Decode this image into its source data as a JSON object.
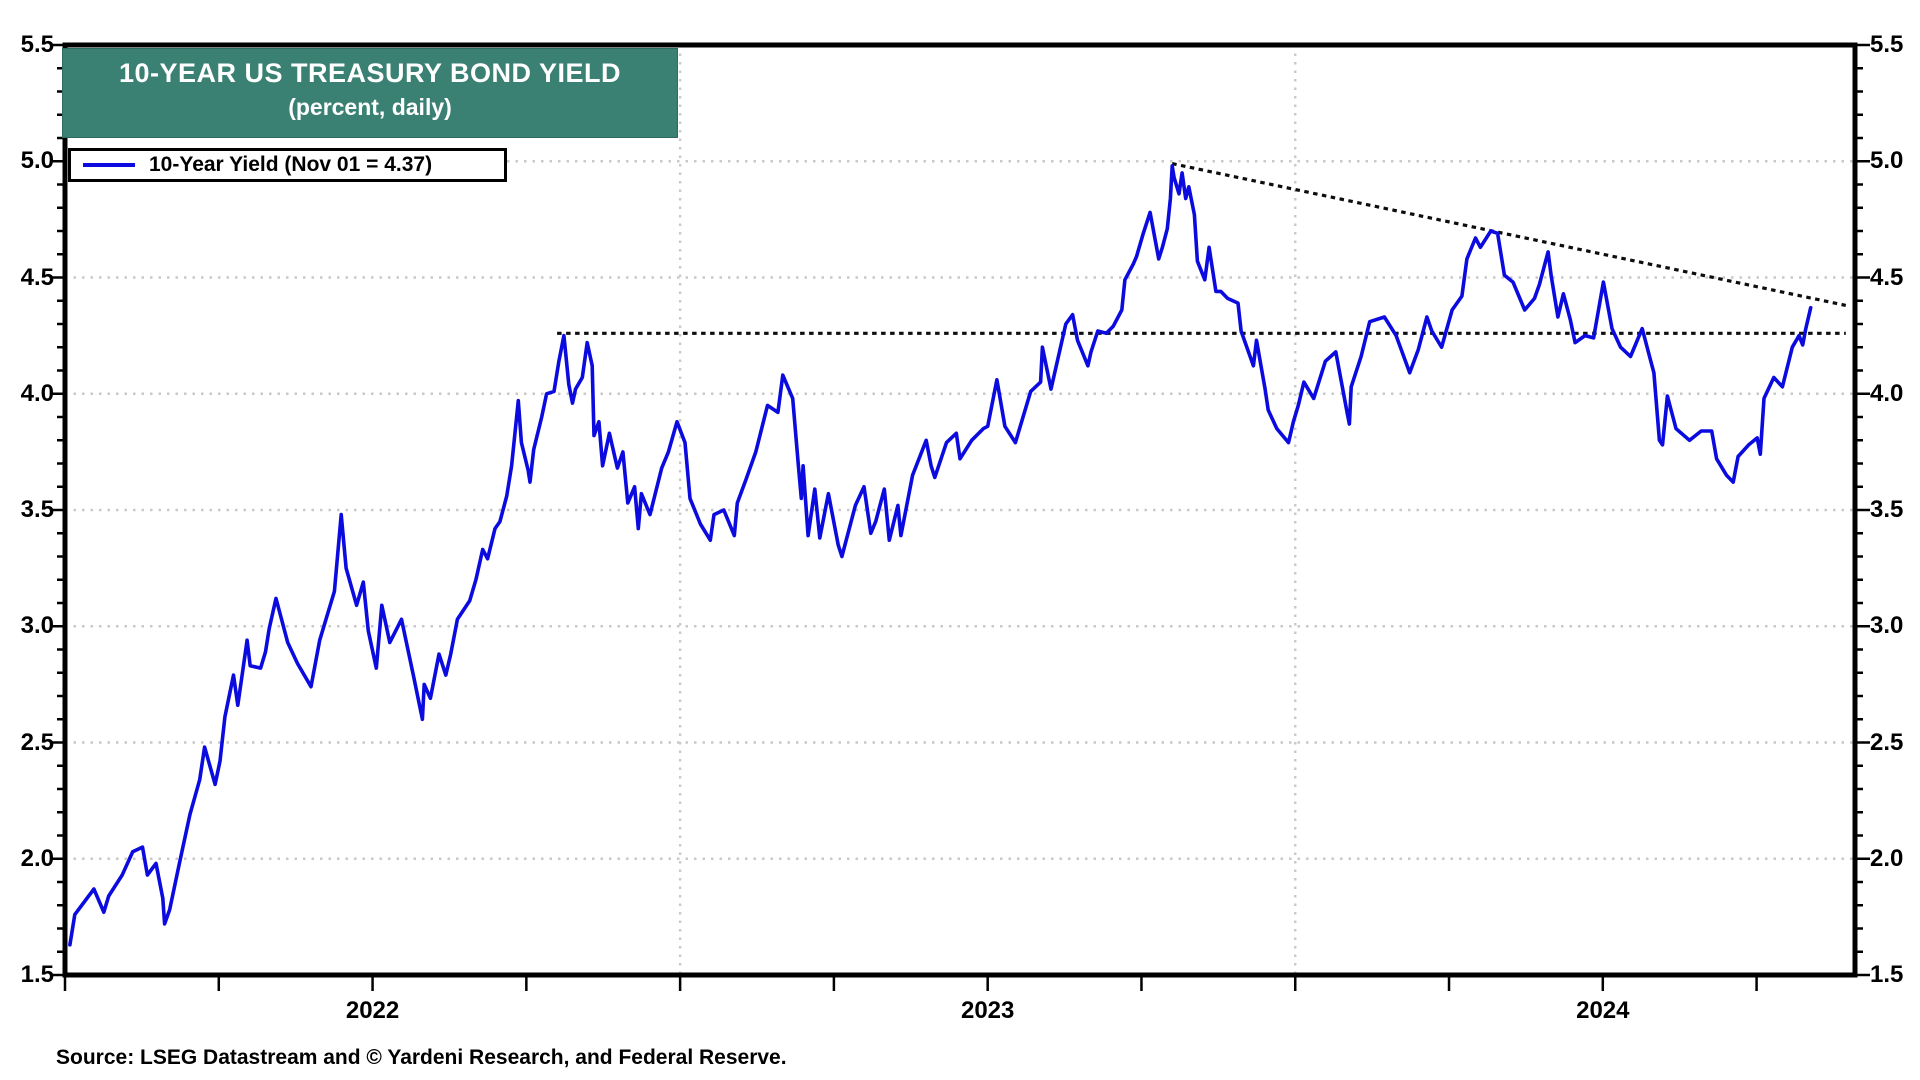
{
  "title_box": {
    "line1": "10-YEAR US TREASURY BOND YIELD",
    "line2": "(percent, daily)",
    "bg_color": "#3A8173",
    "text_color": "#ffffff"
  },
  "legend": {
    "label": "10-Year Yield (Nov 01 = 4.37)",
    "swatch_color": "#0b0be0"
  },
  "source": {
    "text": "Source: LSEG Datastream and © Yardeni Research, and Federal Reserve."
  },
  "chart_data": {
    "type": "line",
    "title": "10-YEAR US TREASURY BOND YIELD",
    "subtitle": "(percent, daily)",
    "ylabel": "percent",
    "xlim": [
      2022.0,
      2024.91
    ],
    "ylim": [
      1.5,
      5.5
    ],
    "y_tick_labels": [
      "1.5",
      "2.0",
      "2.5",
      "3.0",
      "3.5",
      "4.0",
      "4.5",
      "5.0",
      "5.5"
    ],
    "y_minor_tick_interval": 0.1,
    "x_minor_tick_interval": 0.25,
    "x_year_labels": [
      {
        "label": "2022",
        "x": 2022.5
      },
      {
        "label": "2023",
        "x": 2023.5
      },
      {
        "label": "2024",
        "x": 2024.5
      }
    ],
    "grid": true,
    "gridline_color": "#c9c9c9",
    "h_gridlines": [
      2.0,
      2.5,
      3.0,
      3.5,
      4.0,
      4.5,
      5.0
    ],
    "v_gridlines": [
      2023.0,
      2024.0
    ],
    "legend_position": "top-left",
    "trendlines": [
      {
        "name": "horizontal-resistance",
        "color": "#0d0d0d",
        "points": [
          [
            2022.8,
            4.26
          ],
          [
            2024.895,
            4.26
          ]
        ]
      },
      {
        "name": "descending-resistance",
        "color": "#0d0d0d",
        "points": [
          [
            2023.8,
            4.99
          ],
          [
            2024.895,
            4.38
          ]
        ]
      }
    ],
    "series": [
      {
        "name": "10-Year Yield (Nov 01 = 4.37)",
        "color": "#0b0be0",
        "points": [
          [
            2022.008,
            1.63
          ],
          [
            2022.016,
            1.76
          ],
          [
            2022.047,
            1.87
          ],
          [
            2022.063,
            1.77
          ],
          [
            2022.071,
            1.84
          ],
          [
            2022.093,
            1.93
          ],
          [
            2022.11,
            2.03
          ],
          [
            2022.126,
            2.05
          ],
          [
            2022.134,
            1.93
          ],
          [
            2022.148,
            1.98
          ],
          [
            2022.159,
            1.83
          ],
          [
            2022.162,
            1.72
          ],
          [
            2022.17,
            1.78
          ],
          [
            2022.186,
            1.98
          ],
          [
            2022.203,
            2.19
          ],
          [
            2022.219,
            2.34
          ],
          [
            2022.227,
            2.48
          ],
          [
            2022.244,
            2.32
          ],
          [
            2022.252,
            2.42
          ],
          [
            2022.26,
            2.61
          ],
          [
            2022.274,
            2.79
          ],
          [
            2022.281,
            2.66
          ],
          [
            2022.296,
            2.94
          ],
          [
            2022.301,
            2.83
          ],
          [
            2022.318,
            2.82
          ],
          [
            2022.326,
            2.89
          ],
          [
            2022.332,
            2.99
          ],
          [
            2022.343,
            3.12
          ],
          [
            2022.362,
            2.93
          ],
          [
            2022.378,
            2.84
          ],
          [
            2022.4,
            2.74
          ],
          [
            2022.414,
            2.94
          ],
          [
            2022.438,
            3.15
          ],
          [
            2022.449,
            3.48
          ],
          [
            2022.457,
            3.25
          ],
          [
            2022.474,
            3.09
          ],
          [
            2022.485,
            3.19
          ],
          [
            2022.493,
            2.98
          ],
          [
            2022.506,
            2.82
          ],
          [
            2022.515,
            3.09
          ],
          [
            2022.528,
            2.93
          ],
          [
            2022.547,
            3.03
          ],
          [
            2022.567,
            2.78
          ],
          [
            2022.581,
            2.6
          ],
          [
            2022.584,
            2.75
          ],
          [
            2022.594,
            2.69
          ],
          [
            2022.608,
            2.88
          ],
          [
            2022.619,
            2.79
          ],
          [
            2022.627,
            2.88
          ],
          [
            2022.638,
            3.03
          ],
          [
            2022.658,
            3.11
          ],
          [
            2022.668,
            3.2
          ],
          [
            2022.679,
            3.33
          ],
          [
            2022.687,
            3.29
          ],
          [
            2022.699,
            3.42
          ],
          [
            2022.707,
            3.45
          ],
          [
            2022.718,
            3.56
          ],
          [
            2022.726,
            3.69
          ],
          [
            2022.737,
            3.97
          ],
          [
            2022.742,
            3.79
          ],
          [
            2022.753,
            3.67
          ],
          [
            2022.756,
            3.62
          ],
          [
            2022.762,
            3.76
          ],
          [
            2022.775,
            3.9
          ],
          [
            2022.783,
            4.0
          ],
          [
            2022.795,
            4.01
          ],
          [
            2022.803,
            4.14
          ],
          [
            2022.811,
            4.25
          ],
          [
            2022.819,
            4.04
          ],
          [
            2022.825,
            3.96
          ],
          [
            2022.83,
            4.02
          ],
          [
            2022.841,
            4.07
          ],
          [
            2022.849,
            4.22
          ],
          [
            2022.857,
            4.12
          ],
          [
            2022.86,
            3.82
          ],
          [
            2022.868,
            3.88
          ],
          [
            2022.874,
            3.69
          ],
          [
            2022.885,
            3.83
          ],
          [
            2022.898,
            3.68
          ],
          [
            2022.907,
            3.75
          ],
          [
            2022.915,
            3.53
          ],
          [
            2022.926,
            3.6
          ],
          [
            2022.932,
            3.42
          ],
          [
            2022.937,
            3.57
          ],
          [
            2022.951,
            3.48
          ],
          [
            2022.97,
            3.68
          ],
          [
            2022.981,
            3.75
          ],
          [
            2022.995,
            3.88
          ],
          [
            2023.008,
            3.79
          ],
          [
            2023.016,
            3.55
          ],
          [
            2023.033,
            3.44
          ],
          [
            2023.049,
            3.37
          ],
          [
            2023.055,
            3.48
          ],
          [
            2023.071,
            3.5
          ],
          [
            2023.088,
            3.39
          ],
          [
            2023.093,
            3.53
          ],
          [
            2023.107,
            3.63
          ],
          [
            2023.123,
            3.75
          ],
          [
            2023.142,
            3.95
          ],
          [
            2023.159,
            3.92
          ],
          [
            2023.167,
            4.08
          ],
          [
            2023.183,
            3.98
          ],
          [
            2023.192,
            3.7
          ],
          [
            2023.197,
            3.55
          ],
          [
            2023.2,
            3.69
          ],
          [
            2023.208,
            3.39
          ],
          [
            2023.219,
            3.59
          ],
          [
            2023.227,
            3.38
          ],
          [
            2023.241,
            3.57
          ],
          [
            2023.257,
            3.35
          ],
          [
            2023.263,
            3.3
          ],
          [
            2023.285,
            3.52
          ],
          [
            2023.299,
            3.6
          ],
          [
            2023.31,
            3.4
          ],
          [
            2023.318,
            3.45
          ],
          [
            2023.332,
            3.59
          ],
          [
            2023.34,
            3.37
          ],
          [
            2023.354,
            3.52
          ],
          [
            2023.359,
            3.39
          ],
          [
            2023.378,
            3.65
          ],
          [
            2023.4,
            3.8
          ],
          [
            2023.408,
            3.69
          ],
          [
            2023.414,
            3.64
          ],
          [
            2023.433,
            3.79
          ],
          [
            2023.449,
            3.83
          ],
          [
            2023.455,
            3.72
          ],
          [
            2023.474,
            3.8
          ],
          [
            2023.493,
            3.85
          ],
          [
            2023.5,
            3.86
          ],
          [
            2023.515,
            4.06
          ],
          [
            2023.528,
            3.86
          ],
          [
            2023.545,
            3.79
          ],
          [
            2023.57,
            4.01
          ],
          [
            2023.586,
            4.05
          ],
          [
            2023.589,
            4.2
          ],
          [
            2023.603,
            4.02
          ],
          [
            2023.627,
            4.3
          ],
          [
            2023.638,
            4.34
          ],
          [
            2023.646,
            4.23
          ],
          [
            2023.663,
            4.12
          ],
          [
            2023.668,
            4.18
          ],
          [
            2023.679,
            4.27
          ],
          [
            2023.693,
            4.26
          ],
          [
            2023.704,
            4.29
          ],
          [
            2023.718,
            4.36
          ],
          [
            2023.723,
            4.49
          ],
          [
            2023.737,
            4.56
          ],
          [
            2023.742,
            4.59
          ],
          [
            2023.753,
            4.69
          ],
          [
            2023.764,
            4.78
          ],
          [
            2023.778,
            4.58
          ],
          [
            2023.784,
            4.63
          ],
          [
            2023.792,
            4.71
          ],
          [
            2023.797,
            4.84
          ],
          [
            2023.8,
            4.98
          ],
          [
            2023.803,
            4.93
          ],
          [
            2023.811,
            4.86
          ],
          [
            2023.816,
            4.95
          ],
          [
            2023.822,
            4.84
          ],
          [
            2023.827,
            4.89
          ],
          [
            2023.836,
            4.77
          ],
          [
            2023.841,
            4.57
          ],
          [
            2023.853,
            4.49
          ],
          [
            2023.86,
            4.63
          ],
          [
            2023.871,
            4.44
          ],
          [
            2023.879,
            4.44
          ],
          [
            2023.89,
            4.41
          ],
          [
            2023.907,
            4.39
          ],
          [
            2023.912,
            4.27
          ],
          [
            2023.932,
            4.12
          ],
          [
            2023.937,
            4.23
          ],
          [
            2023.951,
            4.02
          ],
          [
            2023.956,
            3.93
          ],
          [
            2023.97,
            3.85
          ],
          [
            2023.989,
            3.79
          ],
          [
            2023.997,
            3.88
          ],
          [
            2024.005,
            3.95
          ],
          [
            2024.014,
            4.05
          ],
          [
            2024.03,
            3.98
          ],
          [
            2024.049,
            4.14
          ],
          [
            2024.066,
            4.18
          ],
          [
            2024.085,
            3.91
          ],
          [
            2024.088,
            3.87
          ],
          [
            2024.091,
            4.03
          ],
          [
            2024.107,
            4.16
          ],
          [
            2024.121,
            4.31
          ],
          [
            2024.145,
            4.33
          ],
          [
            2024.164,
            4.25
          ],
          [
            2024.186,
            4.09
          ],
          [
            2024.2,
            4.19
          ],
          [
            2024.214,
            4.33
          ],
          [
            2024.222,
            4.27
          ],
          [
            2024.238,
            4.2
          ],
          [
            2024.255,
            4.36
          ],
          [
            2024.271,
            4.42
          ],
          [
            2024.279,
            4.58
          ],
          [
            2024.293,
            4.67
          ],
          [
            2024.301,
            4.63
          ],
          [
            2024.318,
            4.7
          ],
          [
            2024.329,
            4.69
          ],
          [
            2024.34,
            4.51
          ],
          [
            2024.354,
            4.48
          ],
          [
            2024.373,
            4.36
          ],
          [
            2024.389,
            4.41
          ],
          [
            2024.397,
            4.47
          ],
          [
            2024.411,
            4.61
          ],
          [
            2024.416,
            4.51
          ],
          [
            2024.427,
            4.33
          ],
          [
            2024.436,
            4.43
          ],
          [
            2024.447,
            4.32
          ],
          [
            2024.455,
            4.22
          ],
          [
            2024.471,
            4.25
          ],
          [
            2024.485,
            4.24
          ],
          [
            2024.493,
            4.36
          ],
          [
            2024.501,
            4.48
          ],
          [
            2024.515,
            4.28
          ],
          [
            2024.529,
            4.2
          ],
          [
            2024.545,
            4.16
          ],
          [
            2024.564,
            4.28
          ],
          [
            2024.578,
            4.14
          ],
          [
            2024.583,
            4.09
          ],
          [
            2024.592,
            3.8
          ],
          [
            2024.597,
            3.78
          ],
          [
            2024.605,
            3.99
          ],
          [
            2024.619,
            3.85
          ],
          [
            2024.641,
            3.8
          ],
          [
            2024.66,
            3.84
          ],
          [
            2024.677,
            3.84
          ],
          [
            2024.685,
            3.72
          ],
          [
            2024.701,
            3.65
          ],
          [
            2024.712,
            3.62
          ],
          [
            2024.72,
            3.73
          ],
          [
            2024.737,
            3.78
          ],
          [
            2024.751,
            3.81
          ],
          [
            2024.756,
            3.74
          ],
          [
            2024.762,
            3.98
          ],
          [
            2024.778,
            4.07
          ],
          [
            2024.792,
            4.03
          ],
          [
            2024.808,
            4.2
          ],
          [
            2024.819,
            4.25
          ],
          [
            2024.825,
            4.21
          ],
          [
            2024.83,
            4.28
          ],
          [
            2024.838,
            4.37
          ]
        ]
      }
    ]
  }
}
